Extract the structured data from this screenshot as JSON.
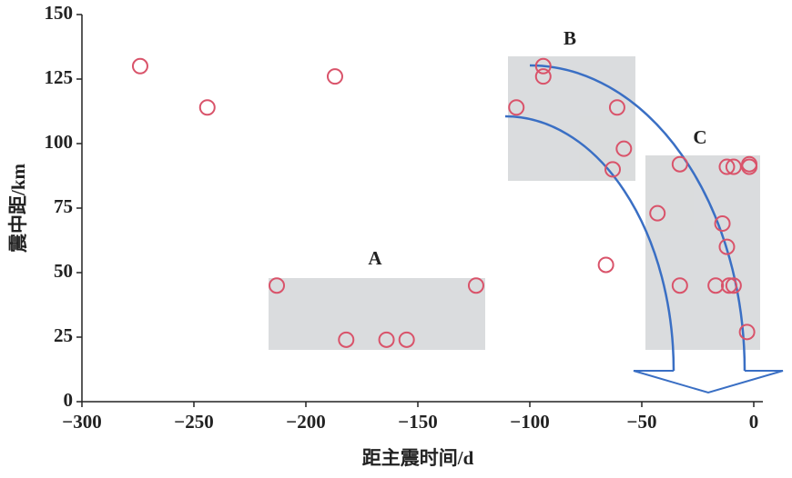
{
  "chart_data": {
    "type": "scatter",
    "x_label": "距主震时间/d",
    "y_label": "震中距/km",
    "xlim": [
      -300,
      0
    ],
    "ylim": [
      0,
      150
    ],
    "xticks": [
      {
        "value": -300,
        "label": "−300"
      },
      {
        "value": -250,
        "label": "−250"
      },
      {
        "value": -200,
        "label": "−200"
      },
      {
        "value": -150,
        "label": "−150"
      },
      {
        "value": -100,
        "label": "−100"
      },
      {
        "value": -50,
        "label": "−50"
      },
      0
    ],
    "yticks": [
      0,
      25,
      50,
      75,
      100,
      125,
      150
    ],
    "color": "#d9536a",
    "x": [
      -274,
      -244,
      -187,
      -213,
      -182,
      -164,
      -155,
      -124,
      -106,
      -94,
      -94,
      -61,
      -58,
      -63,
      -66,
      -33,
      -43,
      -14,
      -12,
      -33,
      -17,
      -11,
      -9,
      -12,
      -9,
      -2,
      -2,
      -3
    ],
    "values": [
      130,
      114,
      126,
      45,
      24,
      24,
      24,
      45,
      114,
      130,
      126,
      114,
      98,
      90,
      53,
      92,
      73,
      69,
      60,
      45,
      45,
      45,
      45,
      91,
      91,
      92,
      91,
      27
    ],
    "annotations": [
      "A",
      "B",
      "C"
    ]
  }
}
